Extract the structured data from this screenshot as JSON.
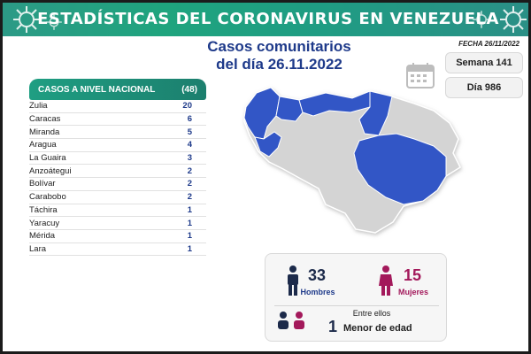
{
  "header": {
    "title": "ESTADÍSTICAS DEL CORONAVIRUS EN VENEZUELA"
  },
  "subtitle": {
    "line1": "Casos comunitarios",
    "line2": "del día 26.11.2022"
  },
  "fecha": "FECHA 26/11/2022",
  "semana": "Semana 141",
  "dia": "Día 986",
  "cases": {
    "title": "CASOS A NIVEL NACIONAL",
    "total": "(48)",
    "rows": [
      {
        "name": "Zulia",
        "value": "20"
      },
      {
        "name": "Caracas",
        "value": "6"
      },
      {
        "name": "Miranda",
        "value": "5"
      },
      {
        "name": "Aragua",
        "value": "4"
      },
      {
        "name": "La Guaira",
        "value": "3"
      },
      {
        "name": "Anzoátegui",
        "value": "2"
      },
      {
        "name": "Bolívar",
        "value": "2"
      },
      {
        "name": "Carabobo",
        "value": "2"
      },
      {
        "name": "Táchira",
        "value": "1"
      },
      {
        "name": "Yaracuy",
        "value": "1"
      },
      {
        "name": "Mérida",
        "value": "1"
      },
      {
        "name": "Lara",
        "value": "1"
      }
    ]
  },
  "stats": {
    "men_count": "33",
    "men_label": "Hombres",
    "women_count": "15",
    "women_label": "Mujeres",
    "minors_intro": "Entre ellos",
    "minors_count": "1",
    "minors_label": "Menor de edad"
  },
  "colors": {
    "header": "#1fa47e",
    "map_highlight": "#3357c6",
    "map_base": "#d4d4d4",
    "men": "#1e3a8a",
    "women": "#a3195b"
  },
  "icons": [
    "virus-icon",
    "calendar-icon",
    "male-icon",
    "female-icon",
    "children-icon"
  ]
}
